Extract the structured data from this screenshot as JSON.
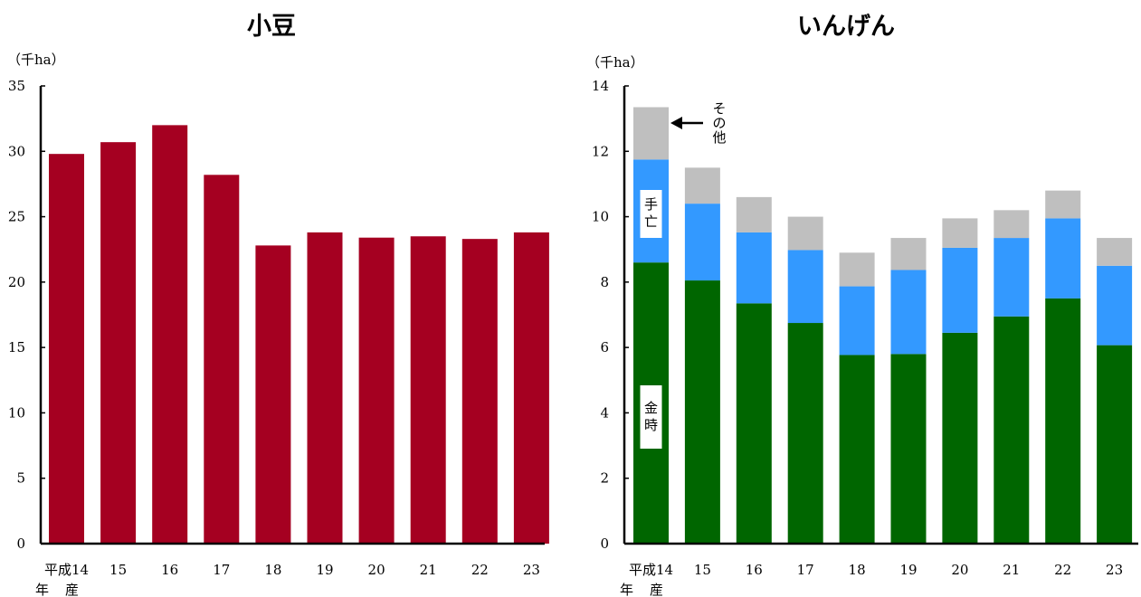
{
  "chart_data": [
    {
      "type": "bar",
      "title": "小豆",
      "ylabel": "（千ha）",
      "xlabel": "",
      "ylim": [
        0,
        35
      ],
      "yticks": [
        "0",
        "5",
        "10",
        "15",
        "20",
        "25",
        "30",
        "35"
      ],
      "categories": [
        "平成14",
        "15",
        "16",
        "17",
        "18",
        "19",
        "20",
        "21",
        "22",
        "23"
      ],
      "x_suffix": [
        "年",
        "産"
      ],
      "values": [
        29.8,
        30.7,
        32.0,
        28.2,
        22.8,
        23.8,
        23.4,
        23.5,
        23.3,
        23.8
      ],
      "colors": {
        "bar": "#a50021"
      },
      "grid": false
    },
    {
      "type": "bar",
      "stacked": true,
      "title": "いんげん",
      "ylabel": "（千ha）",
      "xlabel": "",
      "ylim": [
        0,
        14
      ],
      "yticks": [
        "0",
        "2",
        "4",
        "6",
        "8",
        "10",
        "12",
        "14"
      ],
      "categories": [
        "平成14",
        "15",
        "16",
        "17",
        "18",
        "19",
        "20",
        "21",
        "22",
        "23"
      ],
      "x_suffix": [
        "年",
        "産"
      ],
      "series": [
        {
          "name": "金時",
          "color": "#006600",
          "values": [
            8.6,
            8.05,
            7.35,
            6.75,
            5.77,
            5.8,
            6.45,
            6.95,
            7.5,
            6.07
          ]
        },
        {
          "name": "手亡",
          "color": "#3399ff",
          "values": [
            3.15,
            2.35,
            2.17,
            2.23,
            2.1,
            2.57,
            2.6,
            2.4,
            2.45,
            2.43
          ]
        },
        {
          "name": "その他",
          "color": "#bfbfbf",
          "values": [
            1.6,
            1.1,
            1.08,
            1.02,
            1.03,
            0.98,
            0.9,
            0.85,
            0.85,
            0.85
          ]
        }
      ],
      "annotations": [
        "その他"
      ],
      "grid": false
    }
  ]
}
